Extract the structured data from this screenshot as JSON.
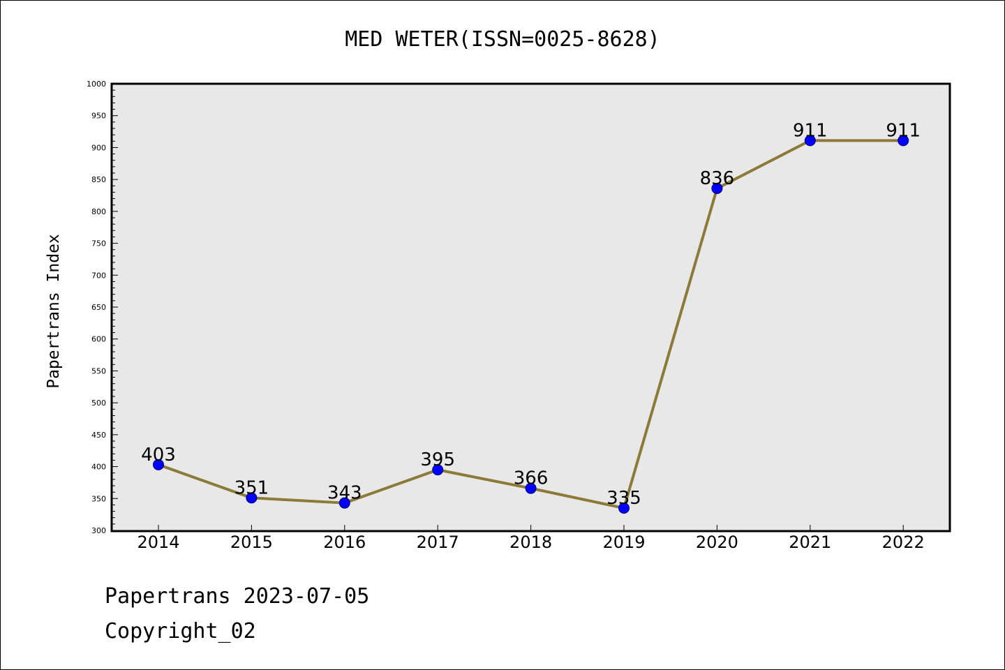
{
  "chart_data": {
    "type": "line",
    "title": "MED WETER(ISSN=0025-8628)",
    "xlabel": "",
    "ylabel": "Papertrans Index",
    "categories": [
      "2014",
      "2015",
      "2016",
      "2017",
      "2018",
      "2019",
      "2020",
      "2021",
      "2022"
    ],
    "series": [
      {
        "values": [
          403,
          351,
          343,
          395,
          366,
          335,
          836,
          911,
          911
        ]
      }
    ],
    "data_labels": [
      "403",
      "351",
      "343",
      "395",
      "366",
      "335",
      "836",
      "911",
      "911"
    ],
    "ylim": [
      300,
      1000
    ],
    "yticks": [
      300,
      350,
      400,
      450,
      500,
      550,
      600,
      650,
      700,
      750,
      800,
      850,
      900,
      950,
      1000
    ],
    "grid": false,
    "colors": {
      "line": "#8c7a38",
      "marker": "#0000ff",
      "plot_background": "#e8e8e8"
    }
  },
  "footer": {
    "line1": "Papertrans 2023-07-05",
    "line2": "Copyright_02"
  }
}
